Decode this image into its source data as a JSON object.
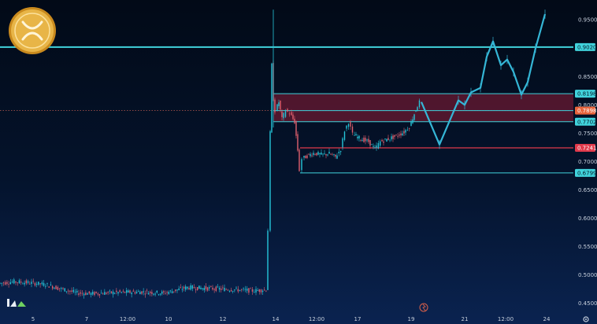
{
  "colors": {
    "up": "#26c6da",
    "down": "#e0606e",
    "level_line": "#41d3dc",
    "resistance_line": "#e0394b",
    "band_fill": "#6a1a32",
    "forecast_line": "#35b6d6",
    "axis_text": "#c6cfdc"
  },
  "icons": {
    "logo": "xrp-coin-icon",
    "brand": "brand-logo-icon",
    "event": "event-marker-icon",
    "settings": "gear-icon"
  },
  "chart_data": {
    "type": "candlestick",
    "title": "",
    "xlabel": "",
    "ylabel": "",
    "ylim": [
      0.43,
      0.985
    ],
    "y_ticks": [
      "0.9500",
      "0.8500",
      "0.8000",
      "0.7500",
      "0.7000",
      "0.6500",
      "0.6000",
      "0.5500",
      "0.5000",
      "0.4500"
    ],
    "x_ticks": [
      "5",
      "7",
      "12:00",
      "10",
      "12",
      "14",
      "12:00",
      "17",
      "19",
      "21",
      "12:00",
      "24"
    ],
    "price_levels": [
      {
        "value": 0.902,
        "label": "0.9020",
        "style": "support"
      },
      {
        "value": 0.8198,
        "label": "0.8198",
        "style": "support"
      },
      {
        "value": 0.7898,
        "label": "0.7898",
        "style": "current"
      },
      {
        "value": 0.7702,
        "label": "0.7702",
        "style": "support"
      },
      {
        "value": 0.7241,
        "label": "0.7241",
        "style": "resistance"
      },
      {
        "value": 0.6799,
        "label": "0.6799",
        "style": "support"
      }
    ],
    "shaded_zone": [
      0.7702,
      0.8198
    ],
    "price_path": [
      [
        0,
        0.485
      ],
      [
        20,
        0.488
      ],
      [
        40,
        0.486
      ],
      [
        60,
        0.483
      ],
      [
        80,
        0.475
      ],
      [
        100,
        0.468
      ],
      [
        120,
        0.467
      ],
      [
        150,
        0.469
      ],
      [
        180,
        0.47
      ],
      [
        210,
        0.468
      ],
      [
        240,
        0.478
      ],
      [
        270,
        0.476
      ],
      [
        300,
        0.474
      ],
      [
        325,
        0.472
      ],
      [
        340,
        0.474
      ],
      [
        343,
        0.58
      ],
      [
        345,
        0.75
      ],
      [
        347,
        0.87
      ],
      [
        349,
        0.81
      ],
      [
        352,
        0.79
      ],
      [
        356,
        0.805
      ],
      [
        360,
        0.775
      ],
      [
        365,
        0.79
      ],
      [
        370,
        0.785
      ],
      [
        376,
        0.77
      ],
      [
        380,
        0.72
      ],
      [
        383,
        0.685
      ],
      [
        386,
        0.705
      ],
      [
        392,
        0.71
      ],
      [
        400,
        0.715
      ],
      [
        410,
        0.712
      ],
      [
        420,
        0.714
      ],
      [
        428,
        0.708
      ],
      [
        435,
        0.722
      ],
      [
        440,
        0.755
      ],
      [
        445,
        0.77
      ],
      [
        450,
        0.748
      ],
      [
        460,
        0.74
      ],
      [
        470,
        0.735
      ],
      [
        478,
        0.722
      ],
      [
        485,
        0.735
      ],
      [
        495,
        0.74
      ],
      [
        505,
        0.745
      ],
      [
        515,
        0.752
      ],
      [
        522,
        0.762
      ],
      [
        530,
        0.792
      ],
      [
        535,
        0.805
      ]
    ],
    "forecast_path": [
      [
        535,
        0.805
      ],
      [
        558,
        0.73
      ],
      [
        582,
        0.808
      ],
      [
        590,
        0.8
      ],
      [
        598,
        0.822
      ],
      [
        610,
        0.83
      ],
      [
        618,
        0.885
      ],
      [
        626,
        0.912
      ],
      [
        636,
        0.87
      ],
      [
        644,
        0.88
      ],
      [
        652,
        0.858
      ],
      [
        662,
        0.818
      ],
      [
        670,
        0.84
      ],
      [
        680,
        0.9
      ],
      [
        692,
        0.96
      ]
    ]
  }
}
